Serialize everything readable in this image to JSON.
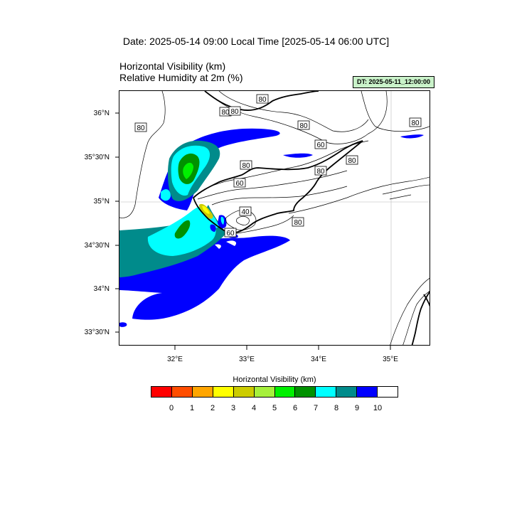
{
  "header": {
    "date_title": "Date: 2025-05-14  09:00 Local Time [2025-05-14  06:00 UTC]",
    "title_line1": "Horizontal Visibility   (km)",
    "title_line2": "Relative Humidity at 2m   (%)",
    "dt_badge": "DT: 2025-05-11_12:00:00"
  },
  "map": {
    "y_ticks": [
      "36°N",
      "35°30'N",
      "35°N",
      "34°30'N",
      "34°N",
      "33°30'N"
    ],
    "x_ticks": [
      "32°E",
      "33°E",
      "34°E",
      "35°E"
    ],
    "contour_labels": [
      "80",
      "80",
      "80",
      "80",
      "80",
      "60",
      "80",
      "80",
      "80",
      "60",
      "40",
      "80",
      "60",
      "80"
    ]
  },
  "colorbar": {
    "title": "Horizontal Visibility  (km)",
    "labels": [
      "0",
      "1",
      "2",
      "3",
      "4",
      "5",
      "6",
      "7",
      "8",
      "9",
      "10"
    ],
    "colors": [
      "#ff0000",
      "#ff4d00",
      "#ffa500",
      "#ffff00",
      "#cccc00",
      "#a6f03c",
      "#00f000",
      "#009100",
      "#00ffff",
      "#008b8b",
      "#0000ff",
      "#ffffff"
    ]
  }
}
